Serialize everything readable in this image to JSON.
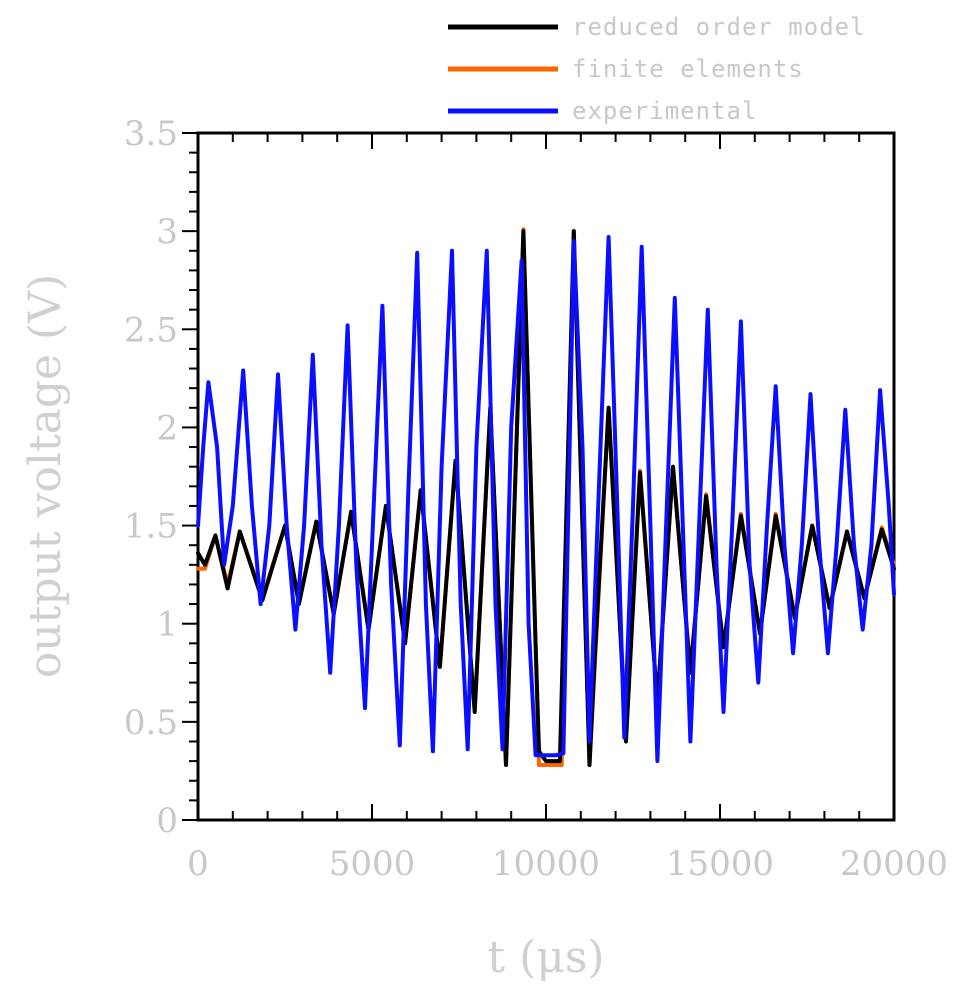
{
  "chart_data": {
    "type": "line",
    "xlabel": "t  (μs)",
    "ylabel": "output voltage (V)",
    "xlim": [
      0,
      20000
    ],
    "ylim": [
      0,
      3.5
    ],
    "x_ticks": [
      0,
      5000,
      10000,
      15000,
      20000
    ],
    "x_tick_labels": [
      "0",
      "5000",
      "10000",
      "15000",
      "20000"
    ],
    "y_ticks": [
      0,
      0.5,
      1,
      1.5,
      2,
      2.5,
      3,
      3.5
    ],
    "y_tick_labels": [
      "0",
      "0.5",
      "1",
      "1.5",
      "2",
      "2.5",
      "3",
      "3.5"
    ],
    "grid": false,
    "legend_position": "top-right",
    "series": [
      {
        "name": "reduced order model",
        "color": "#000000",
        "points": [
          [
            0,
            1.36
          ],
          [
            200,
            1.3
          ],
          [
            500,
            1.45
          ],
          [
            850,
            1.18
          ],
          [
            1200,
            1.47
          ],
          [
            1850,
            1.12
          ],
          [
            2500,
            1.5
          ],
          [
            2900,
            1.1
          ],
          [
            3400,
            1.52
          ],
          [
            3900,
            1.05
          ],
          [
            4400,
            1.57
          ],
          [
            4900,
            0.97
          ],
          [
            5400,
            1.6
          ],
          [
            5950,
            0.9
          ],
          [
            6400,
            1.68
          ],
          [
            6950,
            0.78
          ],
          [
            7400,
            1.83
          ],
          [
            7950,
            0.55
          ],
          [
            8400,
            2.1
          ],
          [
            8850,
            0.28
          ],
          [
            9350,
            3.0
          ],
          [
            9700,
            0.9
          ],
          [
            9800,
            0.35
          ],
          [
            10000,
            0.3
          ],
          [
            10400,
            0.3
          ],
          [
            10800,
            3.0
          ],
          [
            11250,
            0.28
          ],
          [
            11400,
            0.82
          ],
          [
            11800,
            2.1
          ],
          [
            12300,
            0.4
          ],
          [
            12700,
            1.77
          ],
          [
            13200,
            0.6
          ],
          [
            13650,
            1.8
          ],
          [
            14150,
            0.75
          ],
          [
            14600,
            1.65
          ],
          [
            15100,
            0.88
          ],
          [
            15600,
            1.55
          ],
          [
            16150,
            0.95
          ],
          [
            16600,
            1.55
          ],
          [
            17150,
            1.03
          ],
          [
            17650,
            1.5
          ],
          [
            18150,
            1.08
          ],
          [
            18650,
            1.47
          ],
          [
            19150,
            1.13
          ],
          [
            19650,
            1.48
          ],
          [
            20000,
            1.28
          ]
        ]
      },
      {
        "name": "finite elements",
        "color": "#ff6600",
        "points": [
          [
            0,
            1.28
          ],
          [
            200,
            1.28
          ],
          [
            500,
            1.45
          ],
          [
            850,
            1.2
          ],
          [
            1200,
            1.47
          ],
          [
            1850,
            1.13
          ],
          [
            2500,
            1.5
          ],
          [
            2900,
            1.11
          ],
          [
            3400,
            1.52
          ],
          [
            3900,
            1.05
          ],
          [
            4400,
            1.57
          ],
          [
            4900,
            0.97
          ],
          [
            5400,
            1.6
          ],
          [
            5950,
            0.9
          ],
          [
            6400,
            1.68
          ],
          [
            6950,
            0.78
          ],
          [
            7400,
            1.83
          ],
          [
            7950,
            0.56
          ],
          [
            8400,
            2.1
          ],
          [
            8850,
            0.28
          ],
          [
            9350,
            3.01
          ],
          [
            9800,
            0.28
          ],
          [
            10000,
            0.28
          ],
          [
            10450,
            0.28
          ],
          [
            10800,
            3.0
          ],
          [
            11250,
            0.28
          ],
          [
            11800,
            2.1
          ],
          [
            12300,
            0.45
          ],
          [
            12700,
            1.78
          ],
          [
            13200,
            0.6
          ],
          [
            13650,
            1.8
          ],
          [
            14150,
            0.76
          ],
          [
            14600,
            1.66
          ],
          [
            15100,
            0.88
          ],
          [
            15600,
            1.56
          ],
          [
            16150,
            0.95
          ],
          [
            16600,
            1.56
          ],
          [
            17150,
            1.03
          ],
          [
            17650,
            1.5
          ],
          [
            18150,
            1.08
          ],
          [
            18650,
            1.47
          ],
          [
            19150,
            1.13
          ],
          [
            19650,
            1.49
          ],
          [
            20000,
            1.3
          ]
        ]
      },
      {
        "name": "experimental",
        "color": "#0a10ff",
        "points": [
          [
            0,
            1.5
          ],
          [
            150,
            1.9
          ],
          [
            300,
            2.23
          ],
          [
            550,
            1.9
          ],
          [
            750,
            1.3
          ],
          [
            1000,
            1.6
          ],
          [
            1300,
            2.29
          ],
          [
            1550,
            1.6
          ],
          [
            1800,
            1.1
          ],
          [
            2050,
            1.5
          ],
          [
            2300,
            2.27
          ],
          [
            2550,
            1.5
          ],
          [
            2800,
            0.97
          ],
          [
            3050,
            1.5
          ],
          [
            3300,
            2.37
          ],
          [
            3550,
            1.4
          ],
          [
            3800,
            0.75
          ],
          [
            4050,
            1.5
          ],
          [
            4300,
            2.52
          ],
          [
            4550,
            1.3
          ],
          [
            4800,
            0.57
          ],
          [
            5050,
            1.6
          ],
          [
            5300,
            2.62
          ],
          [
            5550,
            1.2
          ],
          [
            5800,
            0.38
          ],
          [
            6050,
            1.7
          ],
          [
            6300,
            2.89
          ],
          [
            6550,
            1.1
          ],
          [
            6750,
            0.35
          ],
          [
            7000,
            1.8
          ],
          [
            7300,
            2.9
          ],
          [
            7550,
            1.1
          ],
          [
            7750,
            0.36
          ],
          [
            8000,
            1.9
          ],
          [
            8300,
            2.9
          ],
          [
            8550,
            1.1
          ],
          [
            8750,
            0.36
          ],
          [
            9000,
            2.0
          ],
          [
            9300,
            2.85
          ],
          [
            9500,
            1.0
          ],
          [
            9700,
            0.33
          ],
          [
            10000,
            0.33
          ],
          [
            10300,
            0.33
          ],
          [
            10500,
            0.34
          ],
          [
            10800,
            2.95
          ],
          [
            11050,
            1.9
          ],
          [
            11250,
            0.4
          ],
          [
            11500,
            1.6
          ],
          [
            11800,
            2.97
          ],
          [
            12050,
            1.6
          ],
          [
            12250,
            0.42
          ],
          [
            12500,
            1.6
          ],
          [
            12750,
            2.92
          ],
          [
            13000,
            1.5
          ],
          [
            13200,
            0.3
          ],
          [
            13450,
            1.5
          ],
          [
            13700,
            2.66
          ],
          [
            13950,
            1.4
          ],
          [
            14150,
            0.4
          ],
          [
            14400,
            1.5
          ],
          [
            14650,
            2.6
          ],
          [
            14900,
            1.3
          ],
          [
            15100,
            0.55
          ],
          [
            15350,
            1.5
          ],
          [
            15600,
            2.54
          ],
          [
            15850,
            1.3
          ],
          [
            16100,
            0.7
          ],
          [
            16350,
            1.5
          ],
          [
            16600,
            2.21
          ],
          [
            16850,
            1.4
          ],
          [
            17100,
            0.85
          ],
          [
            17350,
            1.4
          ],
          [
            17600,
            2.17
          ],
          [
            17850,
            1.4
          ],
          [
            18100,
            0.85
          ],
          [
            18350,
            1.4
          ],
          [
            18600,
            2.09
          ],
          [
            18850,
            1.4
          ],
          [
            19100,
            0.97
          ],
          [
            19350,
            1.4
          ],
          [
            19600,
            2.19
          ],
          [
            19850,
            1.6
          ],
          [
            20000,
            1.15
          ]
        ]
      }
    ]
  }
}
